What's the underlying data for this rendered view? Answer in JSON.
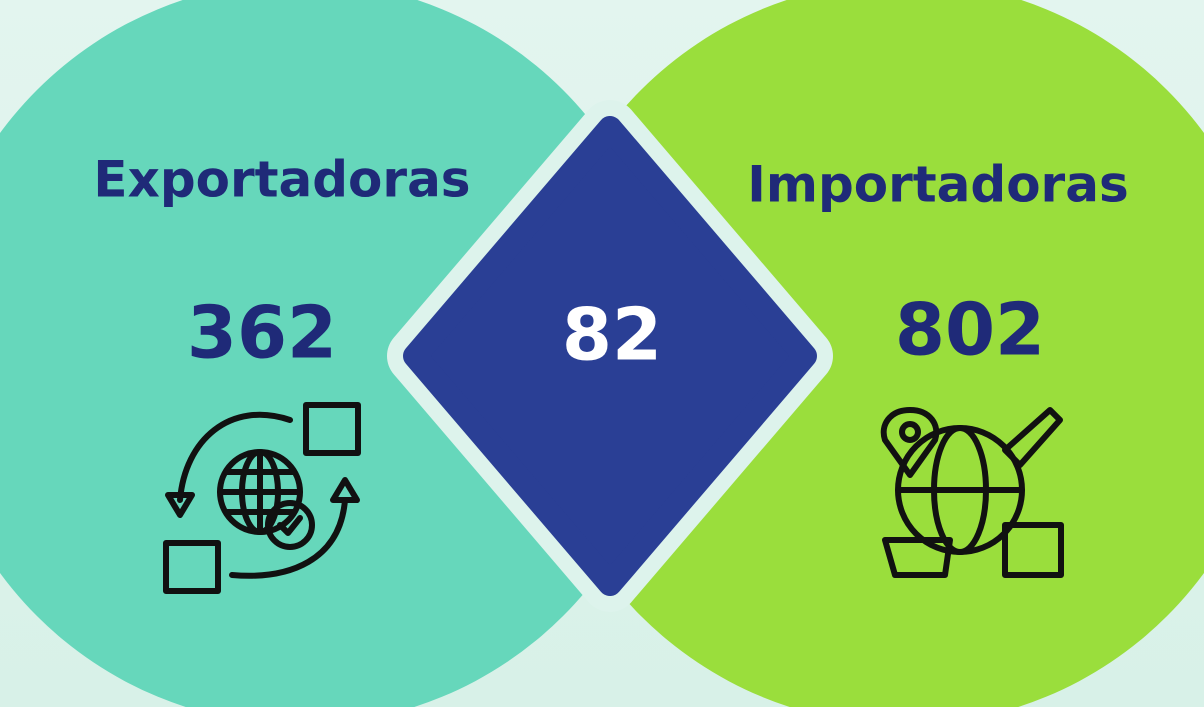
{
  "left": {
    "title": "Exportadoras",
    "value": "362"
  },
  "center": {
    "value": "82"
  },
  "right": {
    "title": "Importadoras",
    "value": "802"
  }
}
